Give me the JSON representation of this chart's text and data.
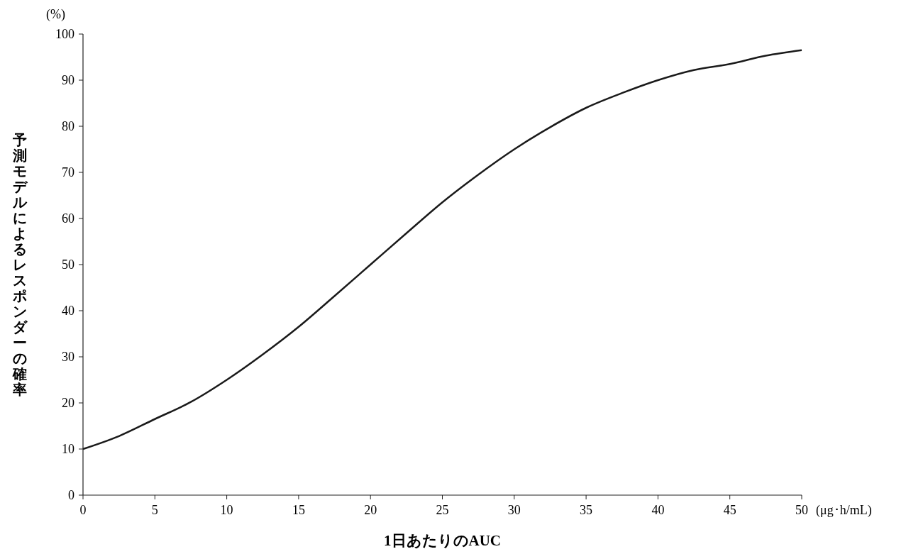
{
  "chart_data": {
    "type": "line",
    "xlabel": "1日あたりのAUC",
    "ylabel": "予測モデルによるレスポンダーの確率",
    "annotations": [
      "(%)",
      "(μg･h/mL)"
    ],
    "x": [
      0,
      2.5,
      5,
      7.5,
      10,
      12.5,
      15,
      17.5,
      20,
      22.5,
      25,
      27.5,
      30,
      32.5,
      35,
      37.5,
      40,
      42.5,
      45,
      47.5,
      50
    ],
    "series": [
      {
        "color": "#1a1a1a",
        "values": [
          10,
          12.8,
          16.5,
          20.2,
          25,
          30.5,
          36.5,
          43.2,
          50,
          56.8,
          63.5,
          69.5,
          75,
          79.8,
          84,
          87.2,
          90,
          92.2,
          93.5,
          95.3,
          96.5
        ]
      }
    ],
    "xlim": [
      0,
      50
    ],
    "xticks": [
      0,
      5,
      10,
      15,
      20,
      25,
      30,
      35,
      40,
      45,
      50
    ],
    "ylim": [
      0,
      100
    ],
    "yticks": [
      0,
      10,
      20,
      30,
      40,
      50,
      60,
      70,
      80,
      90,
      100
    ],
    "grid": false,
    "marker": "none",
    "line_style": "solid"
  }
}
